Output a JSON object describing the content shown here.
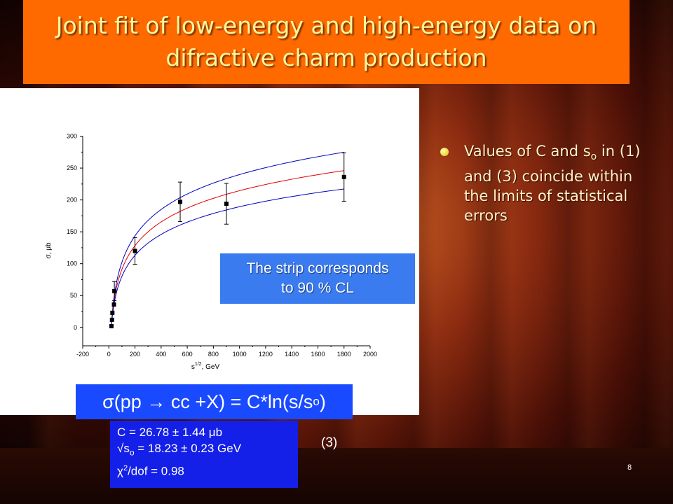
{
  "slide": {
    "title_line1": "Joint fit of low-energy  and high-energy data on",
    "title_line2": "difractive charm production",
    "bullet_pre": "Values of C and s",
    "bullet_sub": "o",
    "bullet_post": " in (1) and (3) coincide within the limits of statistical errors",
    "cl_line1": "The strip corresponds",
    "cl_line2": "to 90 % CL",
    "formula_pre": "σ(pp → cc +X) = C*ln(s/s",
    "formula_sub": "o",
    "formula_post": ")",
    "param_c": "C = 26.78 ± 1.44 μb",
    "param_s0_pre": "√s",
    "param_s0_sub": "o",
    "param_s0_post": " = 18.23 ± 0.23 GeV",
    "param_chi_pre": "χ",
    "param_chi_sup": "2",
    "param_chi_post": "/dof = 0.98",
    "eq_number": "(3)",
    "page_number": "8",
    "colors": {
      "title_bg": "#ff6a00",
      "title_text": "#fff59a",
      "fit_curve": "#e00000",
      "band_curve": "#0000c0",
      "formula_bg": "#1a4aff"
    }
  },
  "chart_data": {
    "type": "scatter",
    "xlabel_pre": "s",
    "xlabel_sup": "1/2",
    "xlabel_post": ", GeV",
    "ylabel": "σ, μb",
    "xlim": [
      -200,
      2000
    ],
    "ylim": [
      -20,
      305
    ],
    "x_ticks": [
      -200,
      0,
      200,
      400,
      600,
      800,
      1000,
      1200,
      1400,
      1600,
      1800,
      2000
    ],
    "y_ticks": [
      0,
      50,
      100,
      150,
      200,
      250,
      300
    ],
    "grid": false,
    "points": [
      {
        "x": 20,
        "y": 2,
        "err": 0
      },
      {
        "x": 24,
        "y": 12,
        "err": 0
      },
      {
        "x": 27,
        "y": 23,
        "err": 0
      },
      {
        "x": 39,
        "y": 36,
        "err": 0
      },
      {
        "x": 42,
        "y": 57,
        "err": 15
      },
      {
        "x": 200,
        "y": 120,
        "err": 21
      },
      {
        "x": 546,
        "y": 197,
        "err": 31
      },
      {
        "x": 900,
        "y": 194,
        "err": 32
      },
      {
        "x": 1800,
        "y": 236,
        "err": 38
      }
    ],
    "fit": {
      "C": 26.78,
      "s0": 18.23,
      "C_err": 1.44,
      "s0_err": 0.23,
      "x_range": [
        18.5,
        1800
      ]
    }
  }
}
